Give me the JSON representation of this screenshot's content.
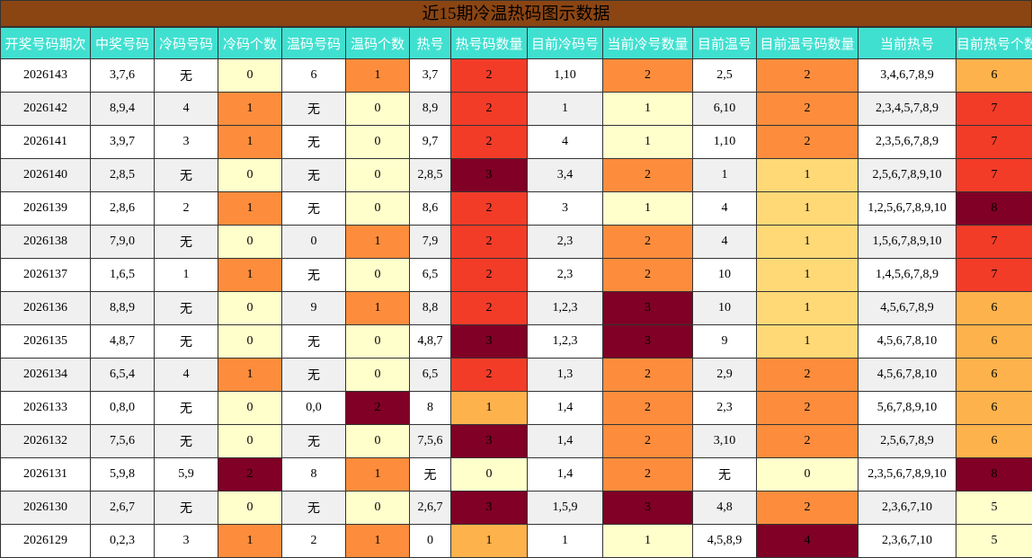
{
  "title": "近15期冷温热码图示数据",
  "headers": [
    "开奖号码期次",
    "中奖号码",
    "冷码号码",
    "冷码个数",
    "温码号码",
    "温码个数",
    "热号",
    "热号码数量",
    "目前冷码号",
    "当前冷号数量",
    "目前温号",
    "目前温号码数量",
    "当前热号",
    "目前热号个数"
  ],
  "rows": [
    [
      "2026143",
      "3,7,6",
      "无",
      "0",
      "6",
      "1",
      "3,7",
      "2",
      "1,10",
      "2",
      "2,5",
      "2",
      "3,4,6,7,8,9",
      "6"
    ],
    [
      "2026142",
      "8,9,4",
      "4",
      "1",
      "无",
      "0",
      "8,9",
      "2",
      "1",
      "1",
      "6,10",
      "2",
      "2,3,4,5,7,8,9",
      "7"
    ],
    [
      "2026141",
      "3,9,7",
      "3",
      "1",
      "无",
      "0",
      "9,7",
      "2",
      "4",
      "1",
      "1,10",
      "2",
      "2,3,5,6,7,8,9",
      "7"
    ],
    [
      "2026140",
      "2,8,5",
      "无",
      "0",
      "无",
      "0",
      "2,8,5",
      "3",
      "3,4",
      "2",
      "1",
      "1",
      "2,5,6,7,8,9,10",
      "7"
    ],
    [
      "2026139",
      "2,8,6",
      "2",
      "1",
      "无",
      "0",
      "8,6",
      "2",
      "3",
      "1",
      "4",
      "1",
      "1,2,5,6,7,8,9,10",
      "8"
    ],
    [
      "2026138",
      "7,9,0",
      "无",
      "0",
      "0",
      "1",
      "7,9",
      "2",
      "2,3",
      "2",
      "4",
      "1",
      "1,5,6,7,8,9,10",
      "7"
    ],
    [
      "2026137",
      "1,6,5",
      "1",
      "1",
      "无",
      "0",
      "6,5",
      "2",
      "2,3",
      "2",
      "10",
      "1",
      "1,4,5,6,7,8,9",
      "7"
    ],
    [
      "2026136",
      "8,8,9",
      "无",
      "0",
      "9",
      "1",
      "8,8",
      "2",
      "1,2,3",
      "3",
      "10",
      "1",
      "4,5,6,7,8,9",
      "6"
    ],
    [
      "2026135",
      "4,8,7",
      "无",
      "0",
      "无",
      "0",
      "4,8,7",
      "3",
      "1,2,3",
      "3",
      "9",
      "1",
      "4,5,6,7,8,10",
      "6"
    ],
    [
      "2026134",
      "6,5,4",
      "4",
      "1",
      "无",
      "0",
      "6,5",
      "2",
      "1,3",
      "2",
      "2,9",
      "2",
      "4,5,6,7,8,10",
      "6"
    ],
    [
      "2026133",
      "0,8,0",
      "无",
      "0",
      "0,0",
      "2",
      "8",
      "1",
      "1,4",
      "2",
      "2,3",
      "2",
      "5,6,7,8,9,10",
      "6"
    ],
    [
      "2026132",
      "7,5,6",
      "无",
      "0",
      "无",
      "0",
      "7,5,6",
      "3",
      "1,4",
      "2",
      "3,10",
      "2",
      "2,5,6,7,8,9",
      "6"
    ],
    [
      "2026131",
      "5,9,8",
      "5,9",
      "2",
      "8",
      "1",
      "无",
      "0",
      "1,4",
      "2",
      "无",
      "0",
      "2,3,5,6,7,8,9,10",
      "8"
    ],
    [
      "2026130",
      "2,6,7",
      "无",
      "0",
      "无",
      "0",
      "2,6,7",
      "3",
      "1,5,9",
      "3",
      "4,8",
      "2",
      "2,3,6,7,10",
      "5"
    ],
    [
      "2026129",
      "0,2,3",
      "3",
      "1",
      "2",
      "1",
      "0",
      "1",
      "1",
      "1",
      "4,5,8,9",
      "4",
      "2,3,6,7,10",
      "5"
    ]
  ],
  "colors": {
    "title_bg": "#8b4513",
    "header_bg": "#40e0d0",
    "count_0": "#ffffcc",
    "count_1": "#fd8d3c",
    "count_2": "#f23c28",
    "count_3": "#800026",
    "hot_1": "#feb24c",
    "warm_1": "#fed976",
    "total_5": "#ffffcc",
    "total_6": "#feb24c",
    "total_7": "#f23c28",
    "total_8": "#800026"
  }
}
